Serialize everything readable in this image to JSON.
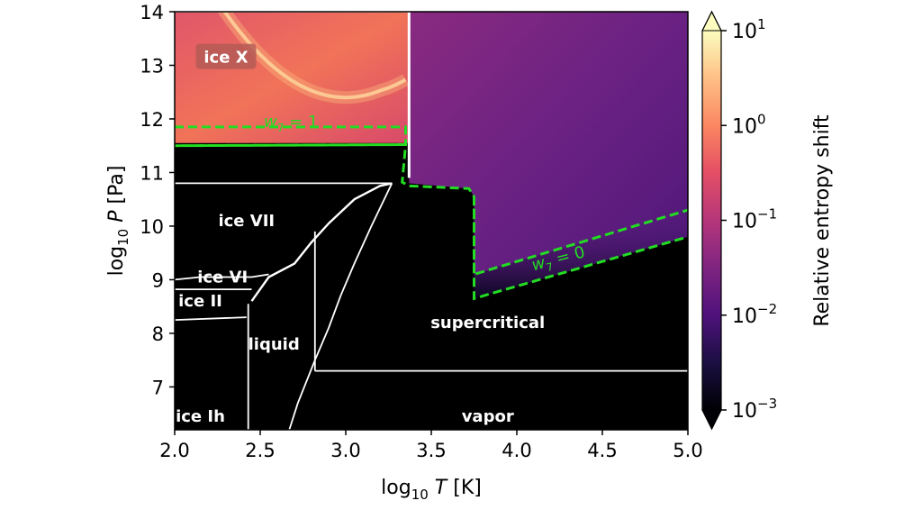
{
  "chart_data": {
    "type": "heatmap",
    "title": "",
    "xlabel": {
      "prefix": "log",
      "sub": "10",
      "var": "T",
      "unit": "[K]"
    },
    "ylabel": {
      "prefix": "log",
      "sub": "10",
      "var": "P",
      "unit": "[Pa]"
    },
    "xlim": [
      2.0,
      5.0
    ],
    "ylim": [
      6.2,
      14.0
    ],
    "xticks": [
      "2.0",
      "2.5",
      "3.0",
      "3.5",
      "4.0",
      "4.5",
      "5.0"
    ],
    "xtick_values": [
      2.0,
      2.5,
      3.0,
      3.5,
      4.0,
      4.5,
      5.0
    ],
    "yticks": [
      "7",
      "8",
      "9",
      "10",
      "11",
      "12",
      "13",
      "14"
    ],
    "ytick_values": [
      7,
      8,
      9,
      10,
      11,
      12,
      13,
      14
    ],
    "colorbar": {
      "label": "Relative entropy shift",
      "scale": "log",
      "range": [
        0.001,
        10
      ],
      "ticks": [
        {
          "base": "10",
          "exp": "1"
        },
        {
          "base": "10",
          "exp": "0"
        },
        {
          "base": "10",
          "exp": "−1"
        },
        {
          "base": "10",
          "exp": "−2"
        },
        {
          "base": "10",
          "exp": "−3"
        }
      ],
      "tick_values": [
        10,
        1,
        0.1,
        0.01,
        0.001
      ],
      "extend": "both",
      "colormap": "magma"
    },
    "phase_labels": [
      {
        "text": "ice X",
        "x": 2.3,
        "y": 13.15,
        "boxed": true
      },
      {
        "text": "ice VII",
        "x": 2.42,
        "y": 10.1,
        "boxed": false
      },
      {
        "text": "ice VI",
        "x": 2.28,
        "y": 9.05,
        "boxed": false
      },
      {
        "text": "ice II",
        "x": 2.15,
        "y": 8.6,
        "boxed": false
      },
      {
        "text": "liquid",
        "x": 2.58,
        "y": 7.8,
        "boxed": false
      },
      {
        "text": "supercritical",
        "x": 3.83,
        "y": 8.2,
        "boxed": false
      },
      {
        "text": "ice Ih",
        "x": 2.15,
        "y": 6.45,
        "boxed": false
      },
      {
        "text": "vapor",
        "x": 3.83,
        "y": 6.45,
        "boxed": false
      }
    ],
    "contours": [
      {
        "name": "w7 = 1",
        "label": {
          "main": "w",
          "sub": "7",
          "rest": " = 1"
        },
        "color": "#22dd22",
        "style": "dashed",
        "label_pos": {
          "x": 2.68,
          "y": 11.85
        },
        "label_angle": 0
      },
      {
        "name": "w7 = 0",
        "label": {
          "main": "w",
          "sub": "7",
          "rest": " = 0"
        },
        "color": "#22dd22",
        "style": "dashed",
        "label_pos": {
          "x": 4.25,
          "y": 9.3
        },
        "label_angle": -15
      }
    ],
    "phase_boundaries": [
      {
        "name": "ice-x-vertical",
        "points": [
          [
            3.37,
            14.0
          ],
          [
            3.37,
            10.9
          ]
        ]
      },
      {
        "name": "ice-x-top",
        "points": [
          [
            2.0,
            14.0
          ],
          [
            3.37,
            14.0
          ]
        ]
      },
      {
        "name": "ice-vii-lower",
        "points": [
          [
            2.0,
            10.8
          ],
          [
            3.27,
            10.8
          ]
        ]
      },
      {
        "name": "ice-vii-melting",
        "points": [
          [
            2.45,
            8.6
          ],
          [
            2.55,
            9.05
          ],
          [
            2.7,
            9.3
          ],
          [
            2.8,
            9.7
          ],
          [
            2.9,
            10.05
          ],
          [
            3.05,
            10.5
          ],
          [
            3.2,
            10.75
          ],
          [
            3.27,
            10.8
          ]
        ]
      },
      {
        "name": "liquid-vapor",
        "points": [
          [
            2.67,
            6.2
          ],
          [
            2.72,
            6.7
          ],
          [
            2.77,
            7.1
          ],
          [
            2.82,
            7.5
          ],
          [
            2.9,
            8.1
          ],
          [
            2.97,
            8.7
          ],
          [
            3.05,
            9.3
          ],
          [
            3.15,
            10.0
          ],
          [
            3.27,
            10.8
          ]
        ]
      },
      {
        "name": "critical-isotherm",
        "points": [
          [
            2.82,
            9.9
          ],
          [
            2.82,
            7.3
          ]
        ]
      },
      {
        "name": "critical-isobar",
        "points": [
          [
            2.82,
            7.3
          ],
          [
            5.0,
            7.3
          ]
        ]
      },
      {
        "name": "ice-ih-boundary",
        "points": [
          [
            2.43,
            6.2
          ],
          [
            2.43,
            8.55
          ]
        ]
      },
      {
        "name": "ice-ii-top",
        "points": [
          [
            2.0,
            8.82
          ],
          [
            2.45,
            8.82
          ]
        ]
      },
      {
        "name": "ice-ii-bottom",
        "points": [
          [
            2.0,
            8.25
          ],
          [
            2.42,
            8.3
          ]
        ]
      },
      {
        "name": "ice-vi-top",
        "points": [
          [
            2.0,
            9.0
          ],
          [
            2.15,
            9.05
          ],
          [
            2.45,
            9.05
          ],
          [
            2.55,
            9.1
          ]
        ]
      }
    ],
    "grid": false,
    "legend": "none"
  }
}
